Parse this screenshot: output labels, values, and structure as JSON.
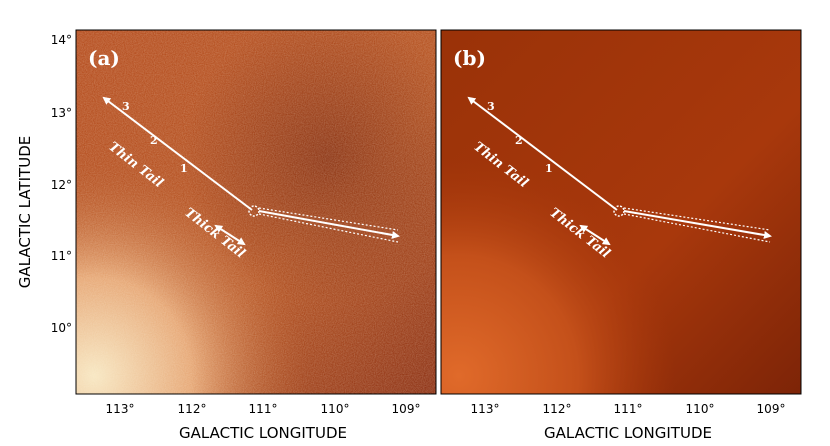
{
  "figure": {
    "y_axis_label": "GALACTIC LATITUDE",
    "x_axis_label": "GALACTIC LONGITUDE",
    "y_ticks": [
      "14°",
      "13°",
      "12°",
      "11°",
      "10°"
    ],
    "x_ticks": [
      "113°",
      "112°",
      "111°",
      "110°",
      "109°"
    ],
    "panels": [
      {
        "label": "(a)",
        "thin_tail_label": "Thin Tail",
        "thick_tail_label": "Thick Tail",
        "markers": [
          "1",
          "2",
          "3"
        ],
        "colors": {
          "bright": "#f7e7c2",
          "mid": "#c85a1f",
          "dark": "#7a260c"
        }
      },
      {
        "label": "(b)",
        "thin_tail_label": "Thin Tail",
        "thick_tail_label": "Thick Tail",
        "markers": [
          "1",
          "2",
          "3"
        ],
        "colors": {
          "bright": "#e06a2a",
          "mid": "#b2420f",
          "dark": "#6f1e06"
        }
      }
    ]
  }
}
